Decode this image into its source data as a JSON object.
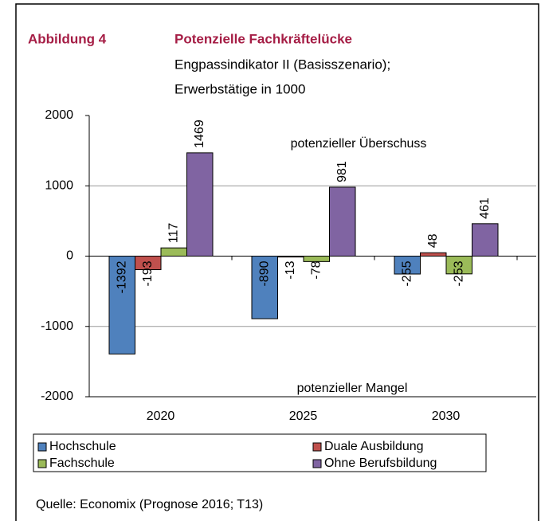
{
  "chart_data": {
    "type": "bar",
    "figure_label": "Abbildung 4",
    "title": "Potenzielle Fachkräftelücke",
    "subtitle": [
      "Engpassindikator II (Basisszenario);",
      "Erwerbstätige in 1000"
    ],
    "annotations": [
      "potenzieller Überschuss",
      "potenzieller Mangel"
    ],
    "source": "Quelle: Economix (Prognose 2016; T13)",
    "categories": [
      "2020",
      "2025",
      "2030"
    ],
    "series": [
      {
        "name": "Hochschule",
        "color": "#4f81bd",
        "values": [
          -1392,
          -890,
          -255
        ]
      },
      {
        "name": "Duale Ausbildung",
        "color": "#c0504d",
        "values": [
          -193,
          -13,
          48
        ]
      },
      {
        "name": "Fachschule",
        "color": "#9bbb59",
        "values": [
          117,
          -78,
          -253
        ]
      },
      {
        "name": "Ohne Berufsbildung",
        "color": "#8064a2",
        "values": [
          1469,
          981,
          461
        ]
      }
    ],
    "ylim": [
      -2000,
      2000
    ],
    "yticks": [
      -2000,
      -1000,
      0,
      1000,
      2000
    ],
    "grid": true
  }
}
